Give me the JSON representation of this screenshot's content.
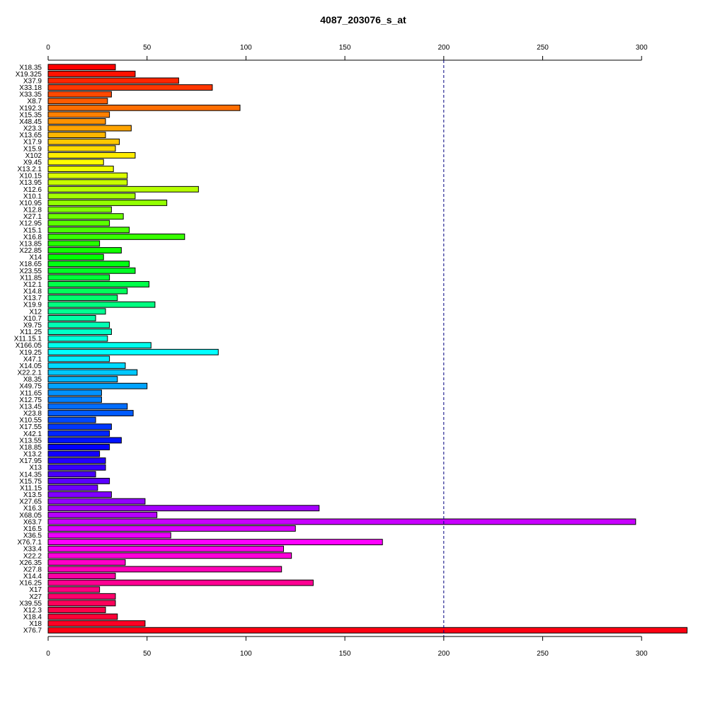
{
  "chart_data": {
    "type": "bar",
    "orientation": "horizontal",
    "title": "4087_203076_s_at",
    "xlabel": "",
    "ylabel": "",
    "xlim": [
      0,
      323
    ],
    "x_ticks": [
      0,
      50,
      100,
      150,
      200,
      250,
      300
    ],
    "x_tick_labels": [
      "0",
      "50",
      "100",
      "150",
      "200",
      "250",
      "300"
    ],
    "axes": [
      "top",
      "bottom"
    ],
    "reference_line": {
      "x": 200,
      "style": "dashed",
      "color": "#000080"
    },
    "grid": false,
    "legend": "none",
    "color_scheme": "rainbow (red → yellow → green → cyan → blue → magenta → red), top to bottom",
    "categories": [
      "X18.35",
      "X19.325",
      "X37.9",
      "X33.18",
      "X33.35",
      "X8.7",
      "X192.3",
      "X15.35",
      "X48.45",
      "X23.3",
      "X13.65",
      "X17.9",
      "X15.9",
      "X102",
      "X9.45",
      "X13.2.1",
      "X10.15",
      "X13.95",
      "X12.6",
      "X10.1",
      "X10.95",
      "X12.8",
      "X27.1",
      "X12.95",
      "X15.1",
      "X16.8",
      "X13.85",
      "X22.85",
      "X14",
      "X18.65",
      "X23.55",
      "X11.85",
      "X12.1",
      "X14.8",
      "X13.7",
      "X19.9",
      "X12",
      "X10.7",
      "X9.75",
      "X11.25",
      "X11.15.1",
      "X166.05",
      "X19.25",
      "X47.1",
      "X14.05",
      "X22.2.1",
      "X8.35",
      "X49.75",
      "X11.65",
      "X12.75",
      "X13.45",
      "X23.8",
      "X10.55",
      "X17.55",
      "X42.1",
      "X13.55",
      "X18.85",
      "X13.2",
      "X17.95",
      "X13",
      "X14.35",
      "X15.75",
      "X11.15",
      "X13.5",
      "X27.65",
      "X16.3",
      "X68.05",
      "X63.7",
      "X16.5",
      "X36.5",
      "X76.7.1",
      "X33.4",
      "X22.2",
      "X26.35",
      "X27.8",
      "X14.4",
      "X16.25",
      "X17",
      "X27",
      "X39.55",
      "X12.3",
      "X18.4",
      "X18",
      "X76.7"
    ],
    "values": [
      34,
      44,
      66,
      83,
      32,
      30,
      97,
      31,
      29,
      42,
      29,
      36,
      34,
      44,
      28,
      33,
      40,
      40,
      76,
      44,
      60,
      32,
      38,
      31,
      41,
      69,
      26,
      37,
      28,
      41,
      44,
      31,
      51,
      40,
      35,
      54,
      29,
      24,
      31,
      32,
      30,
      52,
      86,
      31,
      39,
      45,
      35,
      50,
      27,
      27,
      40,
      43,
      24,
      32,
      31,
      37,
      31,
      26,
      29,
      29,
      24,
      31,
      25,
      32,
      49,
      137,
      55,
      297,
      125,
      62,
      169,
      119,
      123,
      39,
      118,
      34,
      134,
      26,
      34,
      34,
      29,
      35,
      49,
      323
    ]
  }
}
